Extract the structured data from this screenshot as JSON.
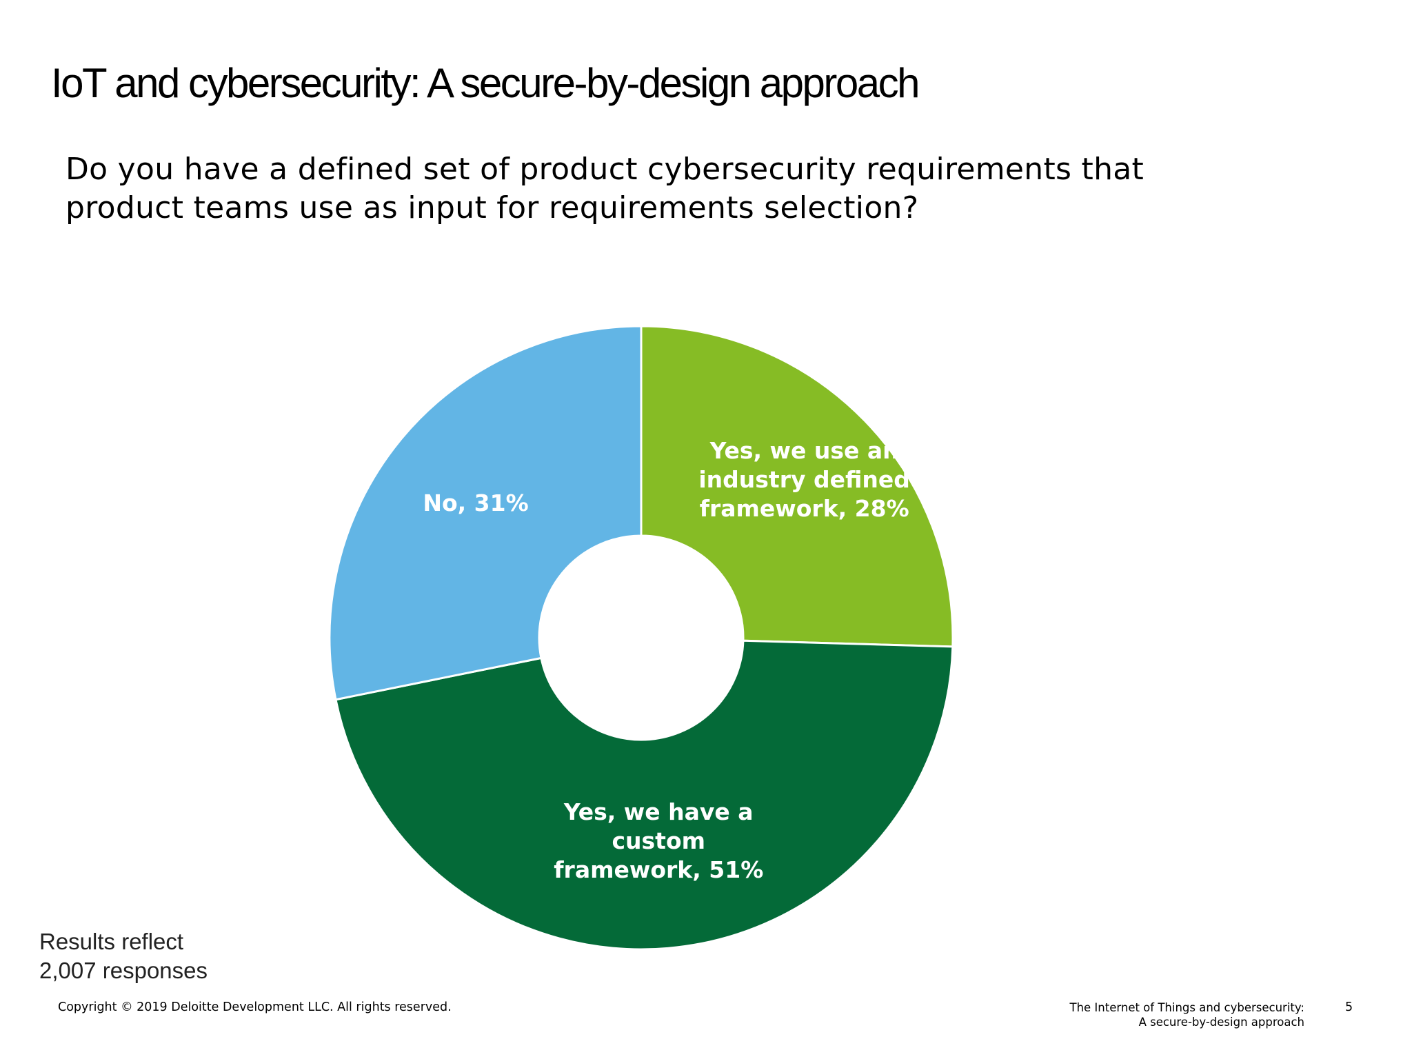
{
  "slide": {
    "title": "IoT and cybersecurity: A secure-by-design approach",
    "question_line1": "Do you have a defined set of product cybersecurity requirements that",
    "question_line2": "product teams use as input for requirements selection?"
  },
  "chart_data": {
    "type": "pie",
    "donut": true,
    "title": "",
    "slices": [
      {
        "name": "Yes, we use an industry defined framework",
        "value": 28,
        "label_lines": [
          "Yes, we use an",
          "industry defined",
          "framework, 28%"
        ],
        "color": "#86BC25"
      },
      {
        "name": "Yes, we have a custom framework",
        "value": 51,
        "label_lines": [
          "Yes, we have a",
          "custom",
          "framework,  51%"
        ],
        "color": "#046A38"
      },
      {
        "name": "No",
        "value": 31,
        "label_lines": [
          "No, 31%"
        ],
        "color": "#62B5E5"
      }
    ],
    "legend": "none"
  },
  "note": {
    "line1": "Results reflect",
    "line2": "2,007 responses"
  },
  "footer": {
    "copyright": "Copyright © 2019 Deloitte Development LLC. All rights reserved.",
    "doc_title_line1": "The Internet of Things and cybersecurity:",
    "doc_title_line2": "A secure-by-design approach",
    "page_number": "5"
  }
}
